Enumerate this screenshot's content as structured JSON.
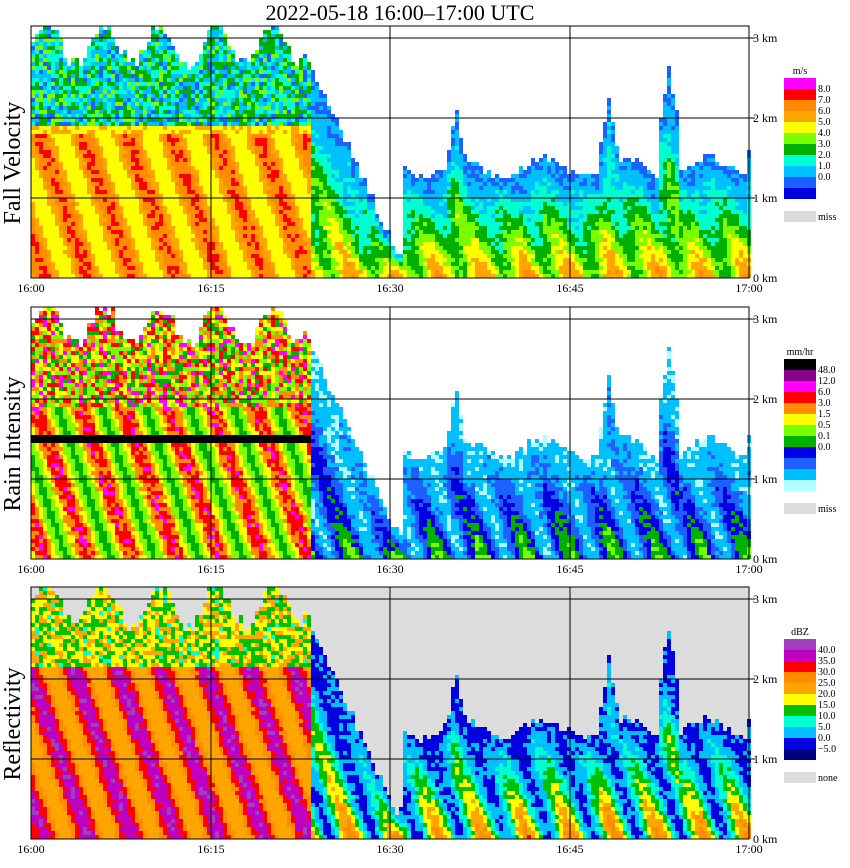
{
  "title": "2022-05-18   16:00–17:00 UTC",
  "colors": {
    "missing": "#dcdcdc",
    "grid": "#000000"
  },
  "chart_data": [
    {
      "type": "heatmap",
      "ylabel": "Fall Velocity",
      "x_ticks": [
        "16:00",
        "16:15",
        "16:30",
        "16:45",
        "17:00"
      ],
      "y_ticks": [
        "0 km",
        "1 km",
        "2 km",
        "3 km"
      ],
      "xlim": [
        "16:00",
        "17:00"
      ],
      "ylim_km": [
        0,
        3.2
      ],
      "grid": true,
      "legend": {
        "unit": "m/s",
        "placement": "right",
        "labels": [
          "8.0",
          "7.0",
          "6.0",
          "5.0",
          "4.0",
          "3.0",
          "2.0",
          "1.0",
          "0.0"
        ],
        "colors": [
          "#ff00ff",
          "#ff0000",
          "#ff8c00",
          "#ffa500",
          "#ffff00",
          "#7cfc00",
          "#00b000",
          "#00ffd0",
          "#00bfff",
          "#1e60ff",
          "#0000e0"
        ],
        "missing_label": "miss"
      }
    },
    {
      "type": "heatmap",
      "ylabel": "Rain Intensity",
      "x_ticks": [
        "16:00",
        "16:15",
        "16:30",
        "16:45",
        "17:00"
      ],
      "y_ticks": [
        "0 km",
        "1 km",
        "2 km",
        "3 km"
      ],
      "xlim": [
        "16:00",
        "17:00"
      ],
      "ylim_km": [
        0,
        3.2
      ],
      "grid": true,
      "legend": {
        "unit": "mm/hr",
        "placement": "right",
        "labels": [
          "48.0",
          "12.0",
          "6.0",
          "3.0",
          "1.5",
          "0.5",
          "0.1",
          "0.0"
        ],
        "colors": [
          "#000000",
          "#8b008b",
          "#ff00ff",
          "#ff0000",
          "#ff8c00",
          "#ffff00",
          "#7cfc00",
          "#00b000",
          "#0000e0",
          "#1e60ff",
          "#00bfff",
          "#b0ffff"
        ],
        "missing_label": "miss"
      }
    },
    {
      "type": "heatmap",
      "ylabel": "Reflectivity",
      "x_ticks": [
        "16:00",
        "16:15",
        "16:30",
        "16:45",
        "17:00"
      ],
      "y_ticks": [
        "0 km",
        "1 km",
        "2 km",
        "3 km"
      ],
      "xlim": [
        "16:00",
        "17:00"
      ],
      "ylim_km": [
        0,
        3.2
      ],
      "grid": true,
      "legend": {
        "unit": "dBZ",
        "placement": "right",
        "labels": [
          "40.0",
          "35.0",
          "30.0",
          "25.0",
          "20.0",
          "15.0",
          "10.0",
          "5.0",
          "0.0",
          "−5.0"
        ],
        "colors": [
          "#a040c0",
          "#c000c0",
          "#ff0000",
          "#ff8c00",
          "#ffa500",
          "#ffff00",
          "#00c000",
          "#00ffd0",
          "#00bfff",
          "#0000e0",
          "#000080"
        ],
        "missing_label": "none"
      }
    }
  ]
}
